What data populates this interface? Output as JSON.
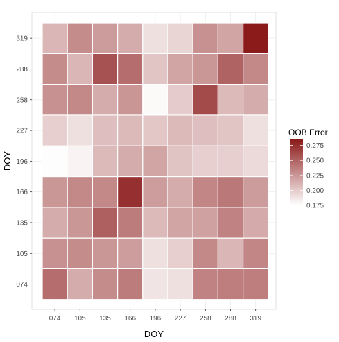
{
  "chart_data": {
    "type": "heatmap",
    "xlabel": "DOY",
    "ylabel": "DOY",
    "x_categories": [
      "074",
      "105",
      "135",
      "166",
      "196",
      "227",
      "258",
      "288",
      "319"
    ],
    "y_categories": [
      "074",
      "105",
      "135",
      "166",
      "196",
      "227",
      "258",
      "288",
      "319"
    ],
    "values": [
      [
        0.245,
        0.215,
        0.23,
        0.238,
        0.188,
        0.19,
        0.235,
        0.237,
        0.237
      ],
      [
        0.228,
        0.23,
        0.225,
        0.222,
        0.19,
        0.198,
        0.232,
        0.21,
        0.233
      ],
      [
        0.215,
        0.225,
        0.252,
        0.238,
        0.208,
        0.218,
        0.22,
        0.235,
        0.216
      ],
      [
        0.225,
        0.232,
        0.232,
        0.275,
        0.222,
        0.215,
        0.233,
        0.24,
        0.223
      ],
      [
        0.176,
        0.181,
        0.208,
        0.215,
        0.218,
        0.204,
        0.198,
        0.198,
        0.193
      ],
      [
        0.198,
        0.19,
        0.206,
        0.208,
        0.202,
        0.208,
        0.206,
        0.203,
        0.19
      ],
      [
        0.228,
        0.232,
        0.215,
        0.226,
        0.178,
        0.2,
        0.262,
        0.208,
        0.215
      ],
      [
        0.23,
        0.21,
        0.258,
        0.245,
        0.203,
        0.218,
        0.225,
        0.25,
        0.232
      ],
      [
        0.21,
        0.23,
        0.223,
        0.215,
        0.19,
        0.195,
        0.228,
        0.218,
        0.285
      ]
    ],
    "colorbar": {
      "title": "OOB Error",
      "min": 0.175,
      "max": 0.285,
      "ticks": [
        "0.275",
        "0.250",
        "0.225",
        "0.200",
        "0.175"
      ],
      "low_color": "#ffffff",
      "high_color": "#8b1a1a"
    },
    "grid": true,
    "legend_position": "right"
  }
}
